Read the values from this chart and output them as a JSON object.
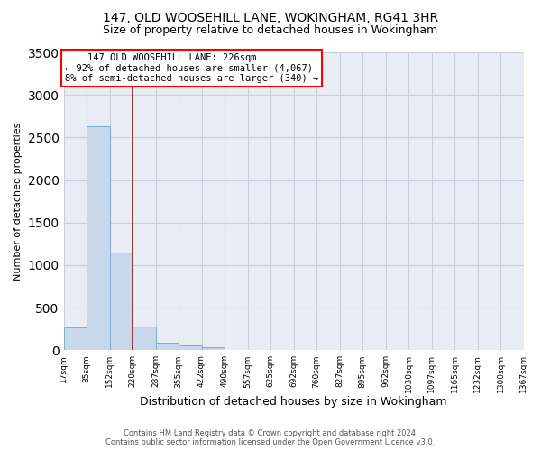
{
  "title1": "147, OLD WOOSEHILL LANE, WOKINGHAM, RG41 3HR",
  "title2": "Size of property relative to detached houses in Wokingham",
  "xlabel": "Distribution of detached houses by size in Wokingham",
  "ylabel": "Number of detached properties",
  "bar_values": [
    270,
    2630,
    1150,
    280,
    90,
    55,
    35,
    5,
    2,
    1,
    0,
    0,
    0,
    0,
    0,
    0,
    0,
    0,
    0,
    0
  ],
  "bar_labels": [
    "17sqm",
    "85sqm",
    "152sqm",
    "220sqm",
    "287sqm",
    "355sqm",
    "422sqm",
    "490sqm",
    "557sqm",
    "625sqm",
    "692sqm",
    "760sqm",
    "827sqm",
    "895sqm",
    "962sqm",
    "1030sqm",
    "1097sqm",
    "1165sqm",
    "1232sqm",
    "1300sqm",
    "1367sqm"
  ],
  "bar_color": "#c8d8ea",
  "bar_edge_color": "#7aaed4",
  "vline_color": "#8b1a1a",
  "vline_x": 2.5,
  "ylim": [
    0,
    3500
  ],
  "yticks": [
    0,
    500,
    1000,
    1500,
    2000,
    2500,
    3000,
    3500
  ],
  "annotation_line1": "    147 OLD WOOSEHILL LANE: 226sqm",
  "annotation_line2": "← 92% of detached houses are smaller (4,067)",
  "annotation_line3": "8% of semi-detached houses are larger (340) →",
  "footer1": "Contains HM Land Registry data © Crown copyright and database right 2024.",
  "footer2": "Contains public sector information licensed under the Open Government Licence v3.0.",
  "grid_color": "#c8d0e0",
  "background_color": "#e8edf5",
  "title_fontsize": 10,
  "subtitle_fontsize": 9,
  "ylabel_fontsize": 8,
  "xlabel_fontsize": 9,
  "tick_fontsize": 6.5,
  "annot_fontsize": 7.5,
  "footer_fontsize": 6
}
